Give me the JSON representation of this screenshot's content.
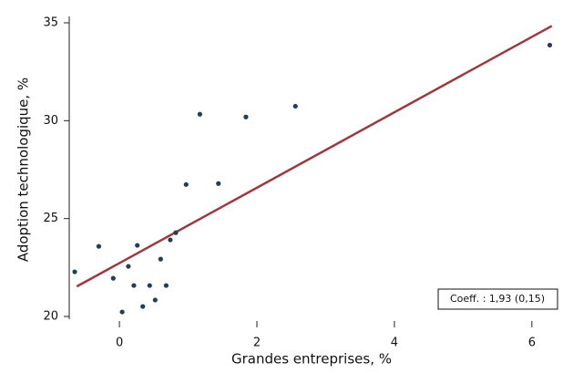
{
  "chart_data": {
    "type": "scatter",
    "x_label": "Grandes entreprises, %",
    "y_label": "Adoption technologique, %",
    "x": [
      -0.65,
      -0.3,
      -0.09,
      0.04,
      0.13,
      0.21,
      0.26,
      0.34,
      0.44,
      0.52,
      0.6,
      0.68,
      0.74,
      0.82,
      0.97,
      1.17,
      1.44,
      1.84,
      2.56,
      6.26
    ],
    "values": [
      22.28,
      23.58,
      21.95,
      20.23,
      22.56,
      21.58,
      23.63,
      20.51,
      21.58,
      20.84,
      22.93,
      21.58,
      23.91,
      24.28,
      26.74,
      30.33,
      26.79,
      30.19,
      30.74,
      33.86
    ],
    "color": "#1f3f5f",
    "trend": {
      "x": [
        -0.62,
        6.29
      ],
      "values": [
        21.53,
        34.84
      ],
      "color": "#9b3a3e"
    },
    "annotation": "Coeff. : 1,93 (0,15)",
    "xlim": [
      -0.73,
      6.32
    ],
    "ylim": [
      20,
      35
    ],
    "xticks": [
      0,
      2,
      4,
      6
    ],
    "yticks": [
      20,
      25,
      30,
      35
    ]
  }
}
